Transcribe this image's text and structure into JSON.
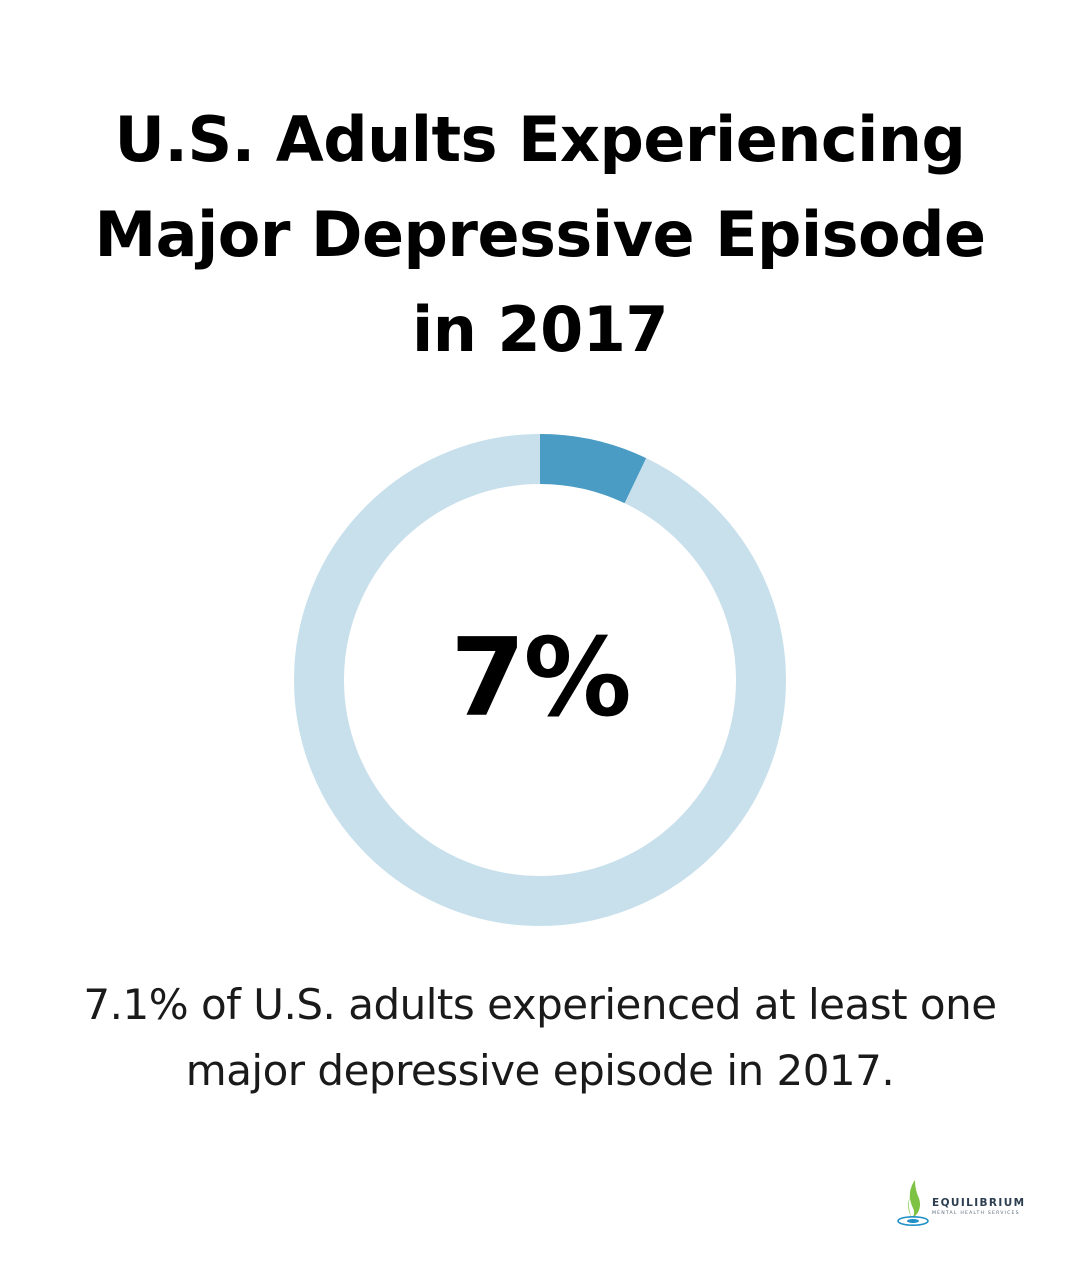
{
  "title_lines": [
    "U.S. Adults Experiencing",
    "Major Depressive Episode",
    "in 2017"
  ],
  "chart_data": {
    "type": "pie",
    "variant": "donut",
    "value_percent": 7.1,
    "center_label": "7%",
    "colors": {
      "highlight": "#4a9cc4",
      "remainder": "#c8e0ec"
    }
  },
  "caption_lines": [
    "7.1% of U.S. adults experienced at least one",
    "major depressive episode in 2017."
  ],
  "logo": {
    "name": "EQUILIBRIUM",
    "tagline": "MENTAL HEALTH SERVICES",
    "icon": "leaf-drop-icon",
    "colors": {
      "leaf": "#7dc242",
      "water": "#1f8fc8",
      "text": "#2c3e50"
    }
  }
}
